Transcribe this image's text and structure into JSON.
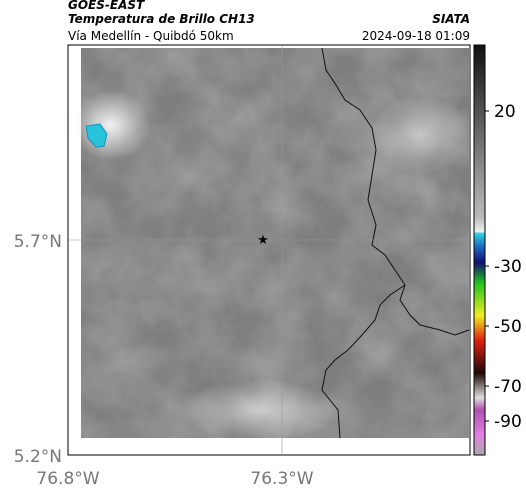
{
  "header": {
    "satellite": "GOES-EAST",
    "product": "Temperatura de Brillo CH13",
    "region": "Vía Medellín - Quibdó 50km",
    "source": "SIATA",
    "timestamp": "2024-09-18 01:09"
  },
  "map": {
    "lat_labels": [
      "5.7°N",
      "5.2°N"
    ],
    "lon_labels": [
      "76.8°W",
      "76.3°W"
    ]
  },
  "colorbar": {
    "ticks": [
      20,
      -30,
      -50,
      -70,
      -90
    ]
  }
}
